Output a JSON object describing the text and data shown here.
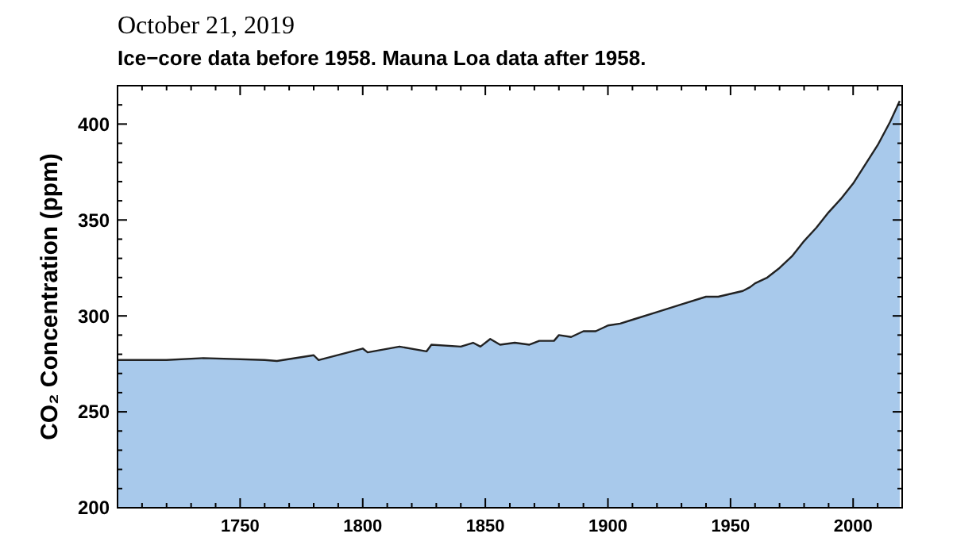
{
  "chart_data": {
    "type": "area",
    "title": "October 21, 2019",
    "subtitle": "Ice−core data before 1958. Mauna Loa data after 1958.",
    "ylabel": "CO₂ Concentration (ppm)",
    "x": [
      1700,
      1720,
      1735,
      1760,
      1765,
      1780,
      1782,
      1800,
      1802,
      1815,
      1826,
      1828,
      1840,
      1845,
      1848,
      1852,
      1856,
      1862,
      1868,
      1872,
      1878,
      1880,
      1885,
      1890,
      1895,
      1900,
      1905,
      1910,
      1920,
      1930,
      1940,
      1945,
      1955,
      1958,
      1960,
      1965,
      1970,
      1975,
      1980,
      1985,
      1990,
      1995,
      2000,
      2005,
      2010,
      2015,
      2019
    ],
    "series": [
      {
        "color": "#a8c9eb",
        "values": [
          277,
          277,
          278,
          277,
          276.5,
          279.5,
          277,
          283,
          281,
          284,
          281.5,
          285,
          284,
          286,
          284,
          288,
          285,
          286,
          285,
          287,
          287,
          290,
          289,
          292,
          292,
          295,
          296,
          298,
          302,
          306,
          310,
          310,
          313,
          315,
          317,
          320,
          325,
          331,
          339,
          346,
          354,
          361,
          369,
          379,
          389,
          401,
          412
        ]
      }
    ],
    "xlim": [
      1700,
      2020
    ],
    "ylim": [
      200,
      420
    ],
    "xticks": [
      {
        "value": 1710,
        "label": null
      },
      {
        "value": 1720,
        "label": null
      },
      {
        "value": 1730,
        "label": null
      },
      {
        "value": 1740,
        "label": null
      },
      1750,
      {
        "value": 1760,
        "label": null
      },
      {
        "value": 1770,
        "label": null
      },
      {
        "value": 1780,
        "label": null
      },
      {
        "value": 1790,
        "label": null
      },
      1800,
      {
        "value": 1810,
        "label": null
      },
      {
        "value": 1820,
        "label": null
      },
      {
        "value": 1830,
        "label": null
      },
      {
        "value": 1840,
        "label": null
      },
      1850,
      {
        "value": 1860,
        "label": null
      },
      {
        "value": 1870,
        "label": null
      },
      {
        "value": 1880,
        "label": null
      },
      {
        "value": 1890,
        "label": null
      },
      1900,
      {
        "value": 1910,
        "label": null
      },
      {
        "value": 1920,
        "label": null
      },
      {
        "value": 1930,
        "label": null
      },
      {
        "value": 1940,
        "label": null
      },
      1950,
      {
        "value": 1960,
        "label": null
      },
      {
        "value": 1970,
        "label": null
      },
      {
        "value": 1980,
        "label": null
      },
      {
        "value": 1990,
        "label": null
      },
      2000,
      {
        "value": 2010,
        "label": null
      }
    ],
    "yticks": [
      200,
      {
        "value": 210,
        "label": null
      },
      {
        "value": 220,
        "label": null
      },
      {
        "value": 230,
        "label": null
      },
      {
        "value": 240,
        "label": null
      },
      250,
      {
        "value": 260,
        "label": null
      },
      {
        "value": 270,
        "label": null
      },
      {
        "value": 280,
        "label": null
      },
      {
        "value": 290,
        "label": null
      },
      300,
      {
        "value": 310,
        "label": null
      },
      {
        "value": 320,
        "label": null
      },
      {
        "value": 330,
        "label": null
      },
      {
        "value": 340,
        "label": null
      },
      350,
      {
        "value": 360,
        "label": null
      },
      {
        "value": 370,
        "label": null
      },
      {
        "value": 380,
        "label": null
      },
      {
        "value": 390,
        "label": null
      },
      400,
      {
        "value": 410,
        "label": null
      }
    ]
  }
}
